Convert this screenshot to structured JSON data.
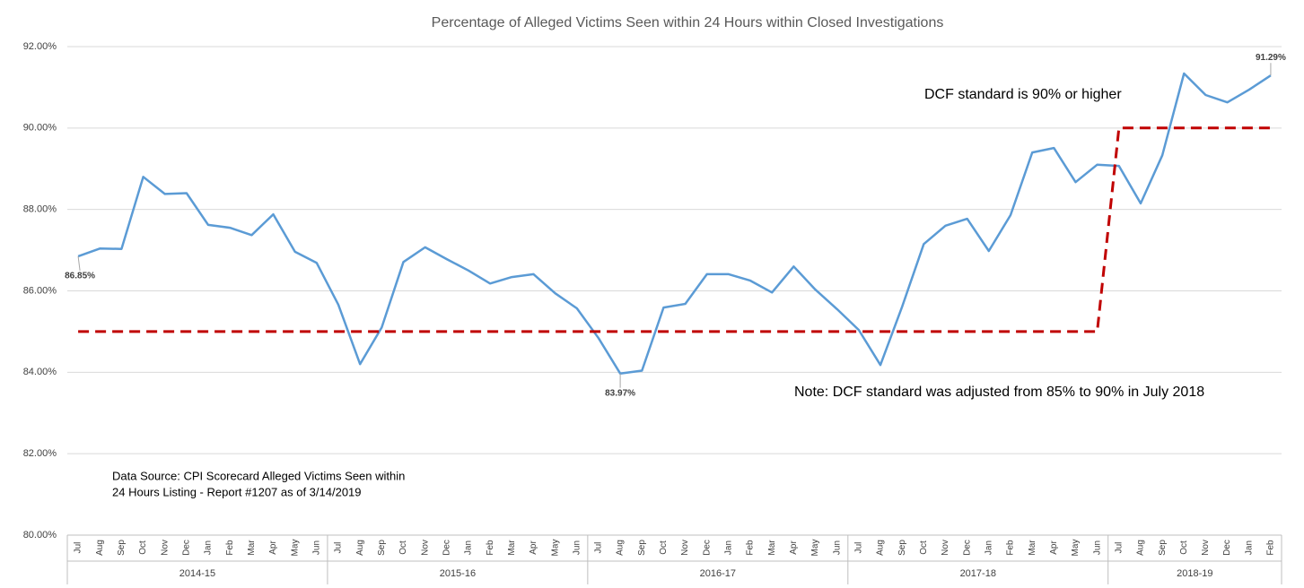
{
  "chart_data": {
    "type": "line",
    "title": "Percentage of Alleged Victims Seen within 24 Hours within Closed Investigations",
    "groups": [
      {
        "label": "2014-15",
        "categories": [
          "Jul",
          "Aug",
          "Sep",
          "Oct",
          "Nov",
          "Dec",
          "Jan",
          "Feb",
          "Mar",
          "Apr",
          "May",
          "Jun"
        ]
      },
      {
        "label": "2015-16",
        "categories": [
          "Jul",
          "Aug",
          "Sep",
          "Oct",
          "Nov",
          "Dec",
          "Jan",
          "Feb",
          "Mar",
          "Apr",
          "May",
          "Jun"
        ]
      },
      {
        "label": "2016-17",
        "categories": [
          "Jul",
          "Aug",
          "Sep",
          "Oct",
          "Nov",
          "Dec",
          "Jan",
          "Feb",
          "Mar",
          "Apr",
          "May",
          "Jun"
        ]
      },
      {
        "label": "2017-18",
        "categories": [
          "Jul",
          "Aug",
          "Sep",
          "Oct",
          "Nov",
          "Dec",
          "Jan",
          "Feb",
          "Mar",
          "Apr",
          "May",
          "Jun"
        ]
      },
      {
        "label": "2018-19",
        "categories": [
          "Jul",
          "Aug",
          "Sep",
          "Oct",
          "Nov",
          "Dec",
          "Jan",
          "Feb"
        ]
      }
    ],
    "series": [
      {
        "color": "#5b9bd5",
        "style": "solid",
        "values": [
          86.85,
          87.04,
          87.03,
          88.8,
          88.38,
          88.4,
          87.62,
          87.55,
          87.37,
          87.88,
          86.96,
          86.69,
          85.66,
          84.2,
          85.1,
          86.71,
          87.07,
          86.78,
          86.5,
          86.18,
          86.34,
          86.41,
          85.94,
          85.57,
          84.84,
          83.97,
          84.04,
          85.59,
          85.68,
          86.41,
          86.41,
          86.25,
          85.96,
          86.6,
          86.03,
          85.55,
          85.04,
          84.18,
          85.61,
          87.15,
          87.6,
          87.77,
          86.98,
          87.86,
          89.4,
          89.51,
          88.67,
          89.1,
          89.07,
          88.15,
          89.33,
          91.34,
          90.81,
          90.63,
          90.94,
          91.29
        ],
        "value_labels": [
          "86.85%",
          null,
          null,
          null,
          null,
          null,
          null,
          null,
          null,
          null,
          null,
          null,
          null,
          null,
          null,
          null,
          null,
          null,
          null,
          null,
          null,
          null,
          null,
          null,
          null,
          "83.97%",
          null,
          null,
          null,
          null,
          null,
          null,
          null,
          null,
          null,
          null,
          null,
          null,
          null,
          null,
          null,
          null,
          null,
          null,
          null,
          null,
          null,
          null,
          null,
          null,
          null,
          null,
          null,
          null,
          null,
          "91.29%"
        ]
      },
      {
        "color": "#c00000",
        "style": "dashed",
        "values": [
          85,
          85,
          85,
          85,
          85,
          85,
          85,
          85,
          85,
          85,
          85,
          85,
          85,
          85,
          85,
          85,
          85,
          85,
          85,
          85,
          85,
          85,
          85,
          85,
          85,
          85,
          85,
          85,
          85,
          85,
          85,
          85,
          85,
          85,
          85,
          85,
          85,
          85,
          85,
          85,
          85,
          85,
          85,
          85,
          85,
          85,
          85,
          85,
          90,
          90,
          90,
          90,
          90,
          90,
          90,
          90
        ]
      }
    ],
    "ylim": [
      80,
      92
    ],
    "yticks": [
      {
        "value": 80,
        "label": "80.00%"
      },
      {
        "value": 82,
        "label": "82.00%"
      },
      {
        "value": 84,
        "label": "84.00%"
      },
      {
        "value": 86,
        "label": "86.00%"
      },
      {
        "value": 88,
        "label": "88.00%"
      },
      {
        "value": 90,
        "label": "90.00%"
      },
      {
        "value": 92,
        "label": "92.00%"
      }
    ],
    "grid": true,
    "annotations": [
      "DCF standard is 90% or higher",
      "Note: DCF standard was adjusted from 85% to 90% in July 2018"
    ],
    "source": [
      "Data Source: CPI Scorecard Alleged Victims Seen within",
      "24 Hours Listing - Report #1207  as of 3/14/2019"
    ]
  }
}
